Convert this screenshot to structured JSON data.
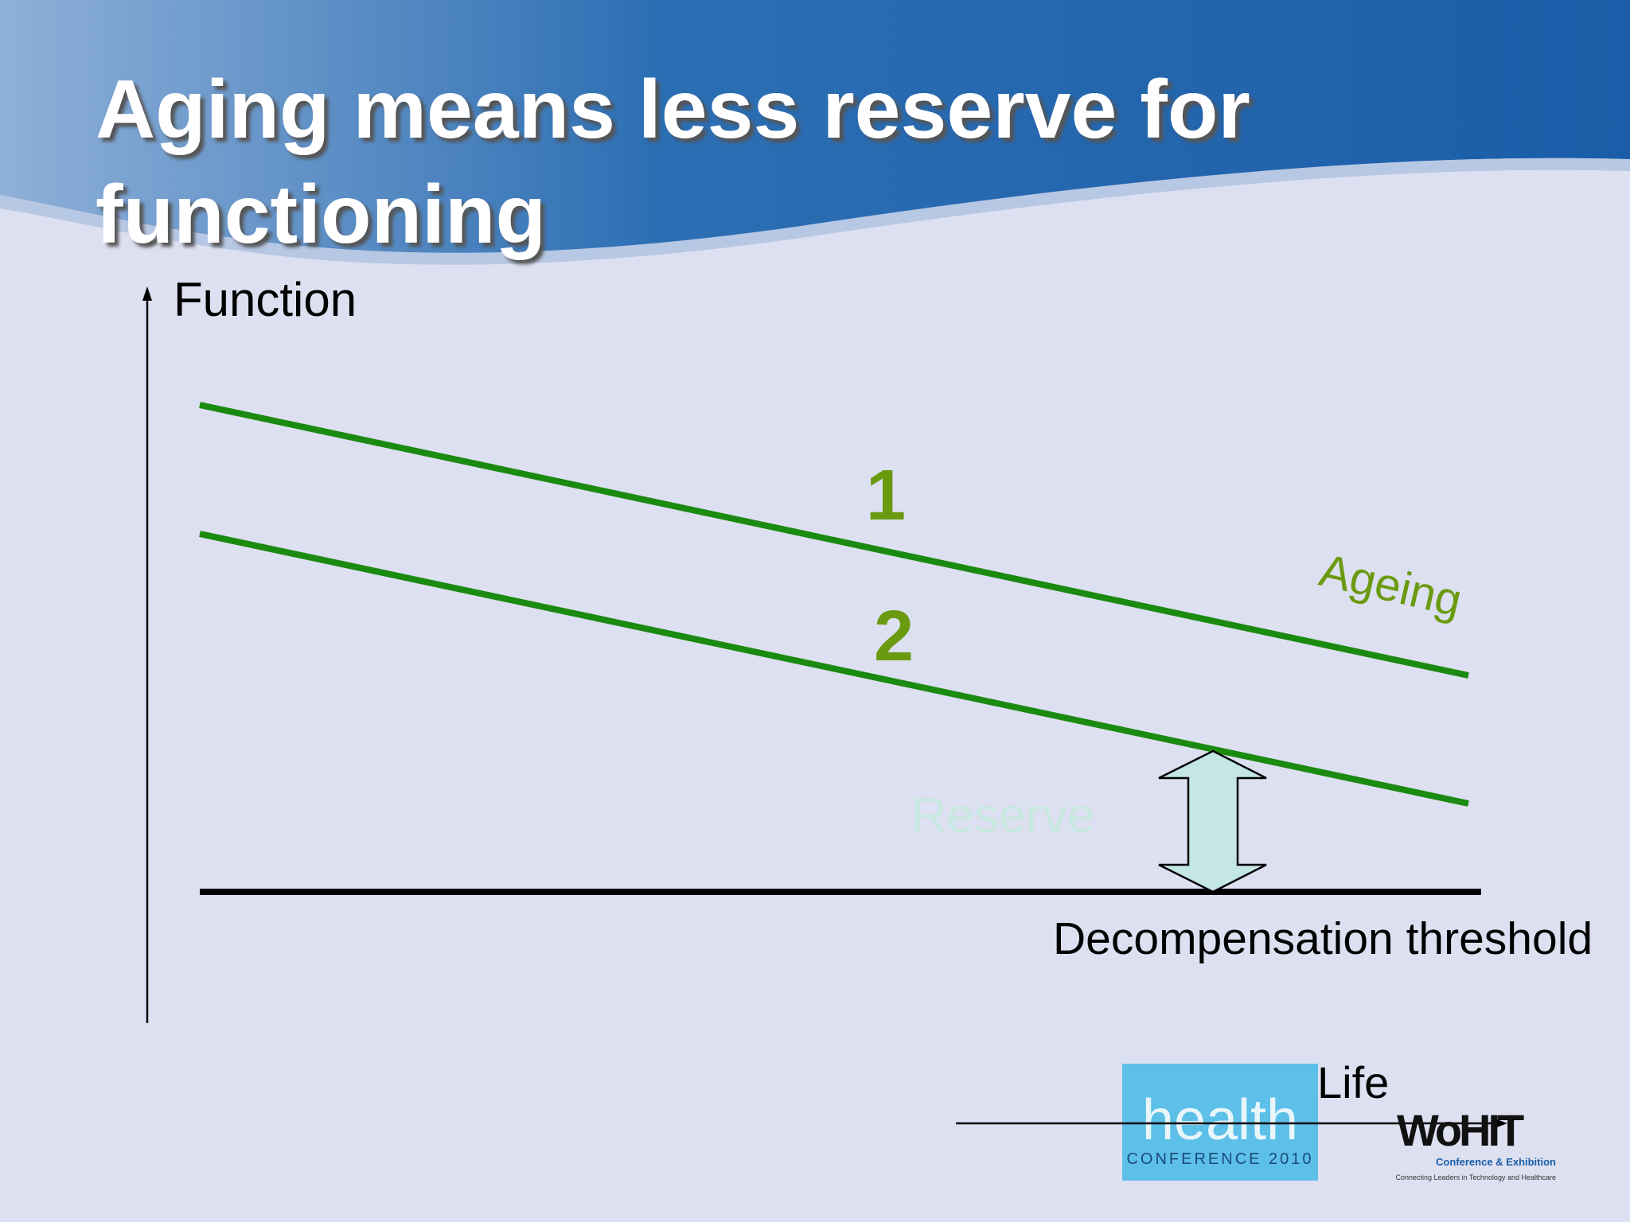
{
  "title": "Aging means less reserve for functioning",
  "diagram": {
    "axis_label": "Function",
    "line_1_label": "1",
    "line_2_label": "2",
    "trend_label": "Ageing",
    "reserve_label": "Reserve",
    "threshold_label": "Decompensation threshold"
  },
  "logos": {
    "life": "Life",
    "health": "health",
    "health_sub": "CONFERENCE 2010",
    "wohit": "WoHIT",
    "wohit_sub": "Conference & Exhibition",
    "wohit_tagline": "Connecting Leaders in Technology and Healthcare"
  }
}
